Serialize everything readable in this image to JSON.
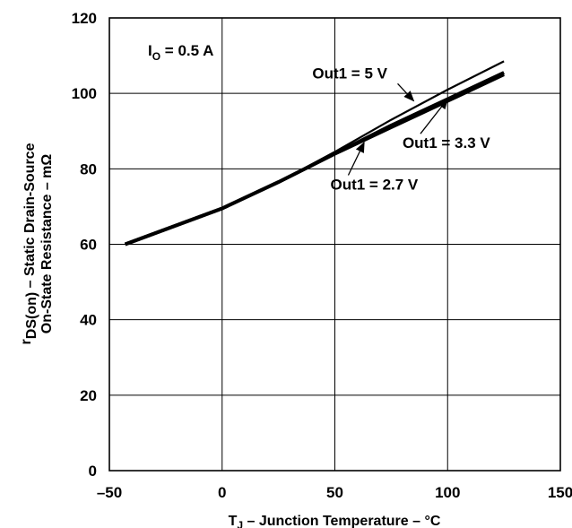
{
  "chart_data": {
    "type": "line",
    "xlabel_main": "T",
    "xlabel_sub": "J",
    "xlabel_rest": " – Junction Temperature – °C",
    "ylabel_line1_r": "r",
    "ylabel_line1_sub": "DS(on)",
    "ylabel_line1_rest": " – Static Drain-Source",
    "ylabel_line2": "On-State Resistance –  mΩ",
    "xlim": [
      -50,
      150
    ],
    "ylim": [
      0,
      120
    ],
    "xticks": [
      "–50",
      "0",
      "50",
      "100",
      "150"
    ],
    "xtick_values": [
      -50,
      0,
      50,
      100,
      150
    ],
    "yticks": [
      "0",
      "20",
      "40",
      "60",
      "80",
      "100",
      "120"
    ],
    "ytick_values": [
      0,
      20,
      40,
      60,
      80,
      100,
      120
    ],
    "grid": true,
    "condition_main": "I",
    "condition_sub": "O",
    "condition_rest": " = 0.5 A",
    "series": [
      {
        "name": "Out1 = 5 V",
        "x": [
          -43,
          0,
          25,
          50,
          75,
          100,
          125
        ],
        "y": [
          60,
          69.5,
          76.5,
          84.5,
          93,
          101,
          108.5
        ]
      },
      {
        "name": "Out1 = 3.3 V",
        "x": [
          -43,
          0,
          25,
          50,
          75,
          100,
          125
        ],
        "y": [
          60,
          69.5,
          76.5,
          84,
          91.5,
          98.5,
          105.5
        ]
      },
      {
        "name": "Out1 = 2.7 V",
        "x": [
          -43,
          0,
          25,
          50,
          75,
          100,
          125
        ],
        "y": [
          60,
          69.5,
          76.5,
          84,
          91,
          98,
          105
        ]
      }
    ],
    "annotations": [
      {
        "label_main": "Out1",
        "label_rest": " = 5 V",
        "series_index": 0,
        "arrow_to": [
          85,
          98
        ],
        "text_at": [
          40,
          104
        ]
      },
      {
        "label_main": "Out1",
        "label_rest": " = 3.3 V",
        "series_index": 1,
        "arrow_to": [
          100,
          98.5
        ],
        "text_at": [
          80,
          85.5
        ]
      },
      {
        "label_main": "Out1",
        "label_rest": " = 2.7 V",
        "series_index": 2,
        "arrow_to": [
          63,
          87
        ],
        "text_at": [
          48,
          74.5
        ]
      }
    ]
  }
}
